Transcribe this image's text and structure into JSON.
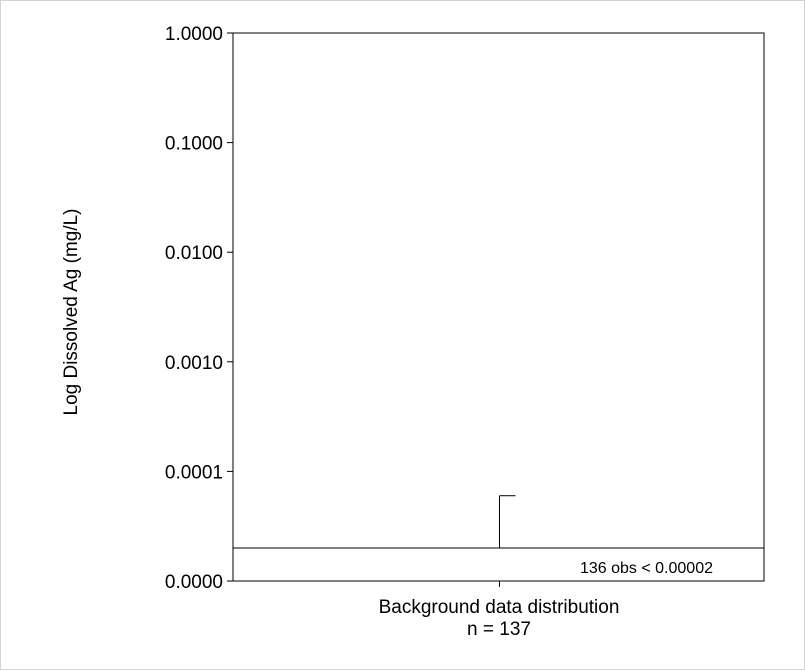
{
  "chart_data": {
    "type": "box",
    "scale": "log",
    "ylabel": "Log Dissolved Ag (mg/L)",
    "xlabel_lines": [
      "Background data distribution",
      "n = 137"
    ],
    "yticks": [
      {
        "value": 1e-05,
        "label": "0.0000"
      },
      {
        "value": 0.0001,
        "label": "0.0001"
      },
      {
        "value": 0.001,
        "label": "0.0010"
      },
      {
        "value": 0.01,
        "label": "0.0100"
      },
      {
        "value": 0.1,
        "label": "0.1000"
      },
      {
        "value": 1.0,
        "label": "1.0000"
      }
    ],
    "ylim": [
      1e-05,
      1.0
    ],
    "categories": [
      "Background data distribution"
    ],
    "box": {
      "detection_limit": 2e-05,
      "whisker_high": 6e-05,
      "n": 137,
      "n_below_limit": 136
    },
    "annotation": "136 obs < 0.00002",
    "grid": false,
    "legend": "none"
  }
}
